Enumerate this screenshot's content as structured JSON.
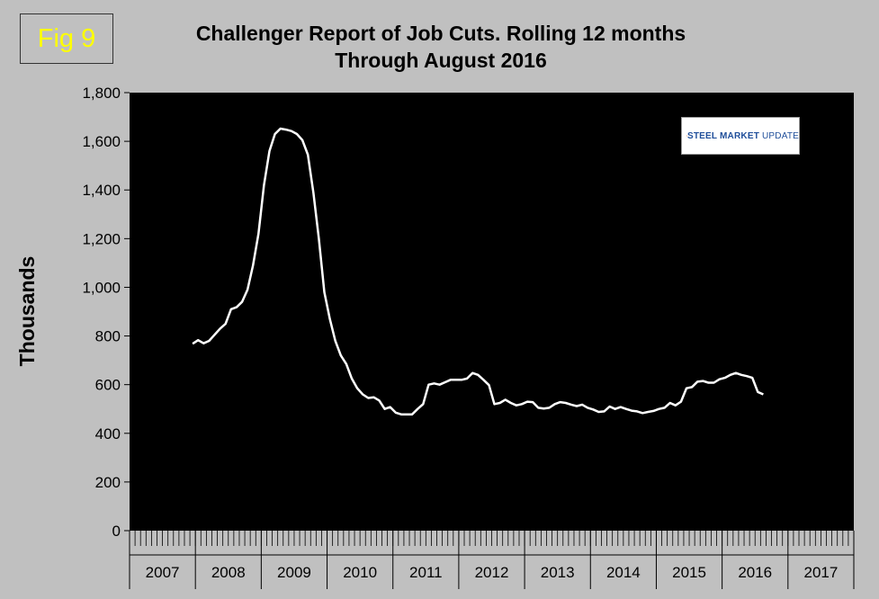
{
  "figure_badge": "Fig 9",
  "title_line1": "Challenger Report of Job Cuts. Rolling 12 months",
  "title_line2": "Through August 2016",
  "logo": {
    "text_bold": "STEEL MARKET",
    "text_light": " UPDATE",
    "icon": "swoosh-icon",
    "colors": {
      "swoosh": "#e0621c",
      "text": "#1f4e9a"
    }
  },
  "colors": {
    "background": "#c0c0c0",
    "plot_background": "#000000",
    "line": "#ffffff",
    "badge_text": "#ffff00"
  },
  "chart_data": {
    "type": "line",
    "title": "Challenger Report of Job Cuts. Rolling 12 months Through August 2016",
    "ylabel": "Thousands",
    "xlabel": "",
    "ylim": [
      0,
      1800
    ],
    "yticks": [
      0,
      200,
      400,
      600,
      800,
      1000,
      1200,
      1400,
      1600,
      1800
    ],
    "ytick_labels": [
      "0",
      "200",
      "400",
      "600",
      "800",
      "1,000",
      "1,200",
      "1,400",
      "1,600",
      "1,800"
    ],
    "x_years": [
      "2007",
      "2008",
      "2009",
      "2010",
      "2011",
      "2012",
      "2013",
      "2014",
      "2015",
      "2016",
      "2017"
    ],
    "x_start": "2007-01",
    "grid": false,
    "legend": "none",
    "series": [
      {
        "x": [
          "2007-12",
          "2008-01",
          "2008-02",
          "2008-03",
          "2008-04",
          "2008-05",
          "2008-06",
          "2008-07",
          "2008-08",
          "2008-09",
          "2008-10",
          "2008-11",
          "2008-12",
          "2009-01",
          "2009-02",
          "2009-03",
          "2009-04",
          "2009-05",
          "2009-06",
          "2009-07",
          "2009-08",
          "2009-09",
          "2009-10",
          "2009-11",
          "2009-12",
          "2010-01",
          "2010-02",
          "2010-03",
          "2010-04",
          "2010-05",
          "2010-06",
          "2010-07",
          "2010-08",
          "2010-09",
          "2010-10",
          "2010-11",
          "2010-12",
          "2011-01",
          "2011-02",
          "2011-03",
          "2011-04",
          "2011-05",
          "2011-06",
          "2011-07",
          "2011-08",
          "2011-09",
          "2011-10",
          "2011-11",
          "2011-12",
          "2012-01",
          "2012-02",
          "2012-03",
          "2012-04",
          "2012-05",
          "2012-06",
          "2012-07",
          "2012-08",
          "2012-09",
          "2012-10",
          "2012-11",
          "2012-12",
          "2013-01",
          "2013-02",
          "2013-03",
          "2013-04",
          "2013-05",
          "2013-06",
          "2013-07",
          "2013-08",
          "2013-09",
          "2013-10",
          "2013-11",
          "2013-12",
          "2014-01",
          "2014-02",
          "2014-03",
          "2014-04",
          "2014-05",
          "2014-06",
          "2014-07",
          "2014-08",
          "2014-09",
          "2014-10",
          "2014-11",
          "2014-12",
          "2015-01",
          "2015-02",
          "2015-03",
          "2015-04",
          "2015-05",
          "2015-06",
          "2015-07",
          "2015-08",
          "2015-09",
          "2015-10",
          "2015-11",
          "2015-12",
          "2016-01",
          "2016-02",
          "2016-03",
          "2016-04",
          "2016-05",
          "2016-06",
          "2016-07",
          "2016-08"
        ],
        "values": [
          768,
          783,
          770,
          780,
          805,
          830,
          850,
          910,
          918,
          940,
          990,
          1090,
          1220,
          1420,
          1560,
          1630,
          1652,
          1648,
          1642,
          1630,
          1605,
          1545,
          1390,
          1200,
          980,
          870,
          780,
          720,
          685,
          625,
          585,
          560,
          545,
          548,
          535,
          500,
          508,
          485,
          478,
          478,
          478,
          500,
          520,
          600,
          605,
          600,
          610,
          620,
          620,
          620,
          625,
          648,
          640,
          620,
          598,
          520,
          525,
          538,
          525,
          515,
          520,
          530,
          528,
          505,
          502,
          505,
          520,
          528,
          525,
          518,
          512,
          518,
          505,
          498,
          488,
          490,
          510,
          500,
          508,
          500,
          493,
          490,
          483,
          488,
          492,
          500,
          505,
          525,
          515,
          530,
          585,
          590,
          612,
          615,
          608,
          608,
          622,
          628,
          640,
          648,
          640,
          635,
          628,
          570,
          560
        ]
      }
    ]
  }
}
